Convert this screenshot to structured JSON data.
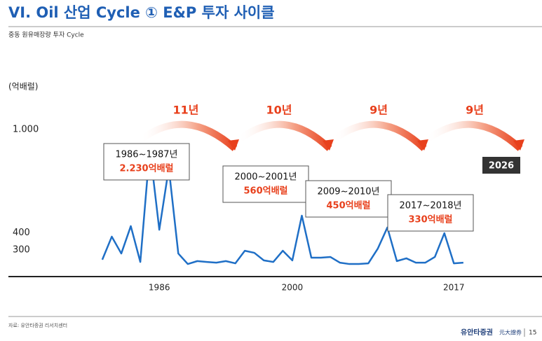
{
  "chart_data": {
    "type": "line",
    "title": "VI. Oil 산업 Cycle  ① E&P 투자 사이클",
    "subtitle": "중동 원유매장량 투자 Cycle",
    "y_label": "(억배럴)",
    "x": [
      1980,
      1981,
      1982,
      1983,
      1984,
      1985,
      1986,
      1987,
      1988,
      1989,
      1990,
      1991,
      1992,
      1993,
      1994,
      1995,
      1996,
      1997,
      1998,
      1999,
      2000,
      2001,
      2002,
      2003,
      2004,
      2005,
      2006,
      2007,
      2008,
      2009,
      2010,
      2011,
      2012,
      2013,
      2014,
      2015,
      2016,
      2017,
      2018
    ],
    "series": [
      {
        "name": "원유매장량",
        "color": "#1f6fc6",
        "values": [
          248,
          382,
          284,
          443,
          235,
          894,
          422,
          780,
          284,
          223,
          240,
          235,
          231,
          240,
          227,
          300,
          288,
          244,
          235,
          300,
          244,
          504,
          260,
          260,
          264,
          231,
          223,
          223,
          227,
          313,
          435,
          240,
          256,
          231,
          231,
          264,
          402,
          227,
          231
        ]
      }
    ],
    "xlim": [
      1974.4,
      2032.4
    ],
    "xticks": [
      1986,
      2000,
      2017
    ],
    "ylim": [
      150,
      1000
    ],
    "yticks": [
      300,
      400,
      {
        "value": 1000,
        "label": "1.000"
      }
    ],
    "annotations": [
      {
        "period": "1986~1987년",
        "reserves": "2.230억배럴"
      },
      {
        "period": "2000~2001년",
        "reserves": "560억배럴"
      },
      {
        "period": "2009~2010년",
        "reserves": "450억배럴"
      },
      {
        "period": "2017~2018년",
        "reserves": "330억배럴"
      }
    ],
    "cycles": [
      "11년",
      "10년",
      "9년",
      "9년"
    ],
    "forecast": "2026",
    "source": "자료: 유안타증권 리서치센터",
    "footer": {
      "brand": "유안타증권",
      "brand_cn": "元大證券",
      "page": "15"
    }
  }
}
